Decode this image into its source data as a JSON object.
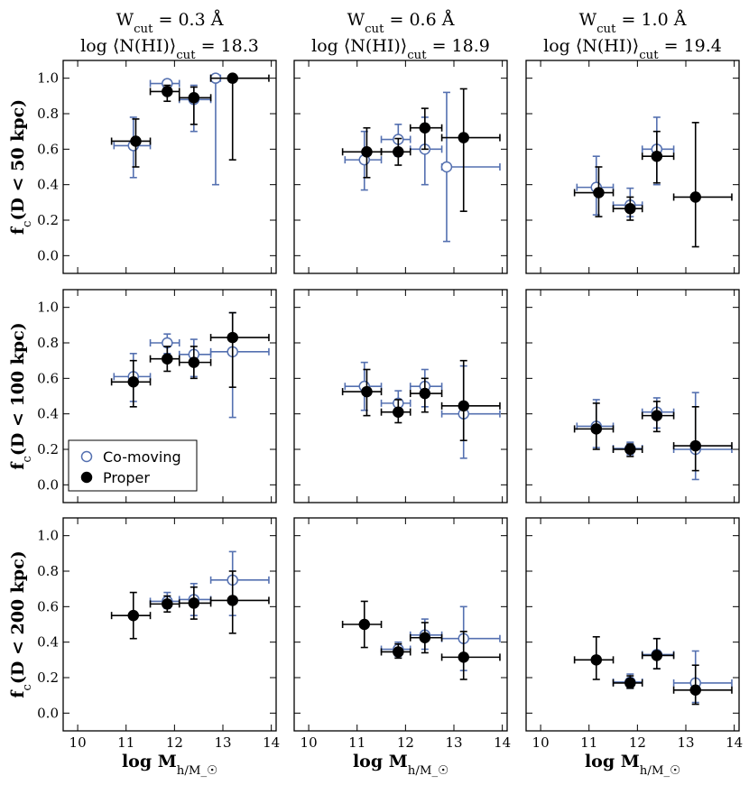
{
  "colors": {
    "comoving": "#5470b0",
    "proper": "#000000"
  },
  "column_titles": [
    {
      "line1": "W_cut = 0.3 Å",
      "line2": "log ⟨N(HI)⟩_cut = 18.3"
    },
    {
      "line1": "W_cut = 0.6 Å",
      "line2": "log ⟨N(HI)⟩_cut = 18.9"
    },
    {
      "line1": "W_cut = 1.0 Å",
      "line2": "log ⟨N(HI)⟩_cut = 19.4"
    }
  ],
  "row_labels": [
    "f_c(D < 50 kpc)",
    "f_c(D < 100 kpc)",
    "f_c(D < 200 kpc)"
  ],
  "xlabel": "log M_h/M_☉",
  "legend": {
    "comoving": "Co-moving",
    "proper": "Proper"
  },
  "chart_data": {
    "type": "scatter",
    "xlim": [
      9.7,
      14.1
    ],
    "ylim": [
      -0.1,
      1.1
    ],
    "xticks": [
      10,
      11,
      12,
      13,
      14
    ],
    "yticks": [
      0.0,
      0.2,
      0.4,
      0.6,
      0.8,
      1.0
    ],
    "panels": [
      [
        {
          "comoving": [
            {
              "x": 11.15,
              "y": 0.62,
              "xlo": 10.75,
              "xhi": 11.5,
              "ylo": 0.44,
              "yhi": 0.78
            },
            {
              "x": 11.85,
              "y": 0.97,
              "xlo": 11.5,
              "xhi": 12.1,
              "ylo": 0.93,
              "yhi": 0.99
            },
            {
              "x": 12.4,
              "y": 0.88,
              "xlo": 12.1,
              "xhi": 12.75,
              "ylo": 0.7,
              "yhi": 0.96
            },
            {
              "x": 12.85,
              "y": 1.0,
              "xlo": 12.75,
              "xhi": 12.95,
              "ylo": 0.4,
              "yhi": 1.0
            }
          ],
          "proper": [
            {
              "x": 11.2,
              "y": 0.645,
              "xlo": 10.7,
              "xhi": 11.5,
              "ylo": 0.5,
              "yhi": 0.77
            },
            {
              "x": 11.85,
              "y": 0.925,
              "xlo": 11.5,
              "xhi": 12.1,
              "ylo": 0.87,
              "yhi": 0.96
            },
            {
              "x": 12.4,
              "y": 0.89,
              "xlo": 12.1,
              "xhi": 12.75,
              "ylo": 0.74,
              "yhi": 0.95
            },
            {
              "x": 13.2,
              "y": 1.0,
              "xlo": 12.75,
              "xhi": 13.95,
              "ylo": 0.54,
              "yhi": 1.0
            }
          ]
        },
        {
          "comoving": [
            {
              "x": 11.15,
              "y": 0.54,
              "xlo": 10.75,
              "xhi": 11.5,
              "ylo": 0.37,
              "yhi": 0.7
            },
            {
              "x": 11.85,
              "y": 0.655,
              "xlo": 11.5,
              "xhi": 12.1,
              "ylo": 0.56,
              "yhi": 0.74
            },
            {
              "x": 12.4,
              "y": 0.6,
              "xlo": 12.1,
              "xhi": 12.75,
              "ylo": 0.4,
              "yhi": 0.78
            },
            {
              "x": 12.85,
              "y": 0.5,
              "xlo": 12.75,
              "xhi": 13.95,
              "ylo": 0.08,
              "yhi": 0.92
            }
          ],
          "proper": [
            {
              "x": 11.2,
              "y": 0.585,
              "xlo": 10.7,
              "xhi": 11.5,
              "ylo": 0.44,
              "yhi": 0.72
            },
            {
              "x": 11.85,
              "y": 0.585,
              "xlo": 11.5,
              "xhi": 12.1,
              "ylo": 0.51,
              "yhi": 0.66
            },
            {
              "x": 12.4,
              "y": 0.72,
              "xlo": 12.1,
              "xhi": 12.75,
              "ylo": 0.6,
              "yhi": 0.83
            },
            {
              "x": 13.2,
              "y": 0.665,
              "xlo": 12.75,
              "xhi": 13.95,
              "ylo": 0.25,
              "yhi": 0.94
            }
          ]
        },
        {
          "comoving": [
            {
              "x": 11.15,
              "y": 0.385,
              "xlo": 10.75,
              "xhi": 11.5,
              "ylo": 0.23,
              "yhi": 0.56
            },
            {
              "x": 11.85,
              "y": 0.285,
              "xlo": 11.5,
              "xhi": 12.1,
              "ylo": 0.22,
              "yhi": 0.38
            },
            {
              "x": 12.4,
              "y": 0.6,
              "xlo": 12.1,
              "xhi": 12.75,
              "ylo": 0.4,
              "yhi": 0.78
            }
          ],
          "proper": [
            {
              "x": 11.2,
              "y": 0.355,
              "xlo": 10.7,
              "xhi": 11.5,
              "ylo": 0.22,
              "yhi": 0.5
            },
            {
              "x": 11.85,
              "y": 0.265,
              "xlo": 11.5,
              "xhi": 12.1,
              "ylo": 0.2,
              "yhi": 0.33
            },
            {
              "x": 12.4,
              "y": 0.56,
              "xlo": 12.1,
              "xhi": 12.75,
              "ylo": 0.41,
              "yhi": 0.7
            },
            {
              "x": 13.2,
              "y": 0.33,
              "xlo": 12.75,
              "xhi": 13.95,
              "ylo": 0.05,
              "yhi": 0.75
            }
          ]
        }
      ],
      [
        {
          "comoving": [
            {
              "x": 11.15,
              "y": 0.61,
              "xlo": 10.75,
              "xhi": 11.5,
              "ylo": 0.47,
              "yhi": 0.74
            },
            {
              "x": 11.85,
              "y": 0.8,
              "xlo": 11.5,
              "xhi": 12.1,
              "ylo": 0.74,
              "yhi": 0.85
            },
            {
              "x": 12.4,
              "y": 0.735,
              "xlo": 12.1,
              "xhi": 12.75,
              "ylo": 0.61,
              "yhi": 0.82
            },
            {
              "x": 13.2,
              "y": 0.75,
              "xlo": 12.75,
              "xhi": 13.95,
              "ylo": 0.38,
              "yhi": 0.97
            }
          ],
          "proper": [
            {
              "x": 11.15,
              "y": 0.58,
              "xlo": 10.7,
              "xhi": 11.5,
              "ylo": 0.44,
              "yhi": 0.7
            },
            {
              "x": 11.85,
              "y": 0.71,
              "xlo": 11.5,
              "xhi": 12.1,
              "ylo": 0.64,
              "yhi": 0.78
            },
            {
              "x": 12.4,
              "y": 0.69,
              "xlo": 12.1,
              "xhi": 12.75,
              "ylo": 0.6,
              "yhi": 0.78
            },
            {
              "x": 13.2,
              "y": 0.83,
              "xlo": 12.75,
              "xhi": 13.95,
              "ylo": 0.55,
              "yhi": 0.97
            }
          ]
        },
        {
          "comoving": [
            {
              "x": 11.15,
              "y": 0.555,
              "xlo": 10.75,
              "xhi": 11.5,
              "ylo": 0.42,
              "yhi": 0.69
            },
            {
              "x": 11.85,
              "y": 0.46,
              "xlo": 11.5,
              "xhi": 12.1,
              "ylo": 0.39,
              "yhi": 0.53
            },
            {
              "x": 12.4,
              "y": 0.555,
              "xlo": 12.1,
              "xhi": 12.75,
              "ylo": 0.44,
              "yhi": 0.65
            },
            {
              "x": 13.2,
              "y": 0.4,
              "xlo": 12.75,
              "xhi": 13.95,
              "ylo": 0.15,
              "yhi": 0.67
            }
          ],
          "proper": [
            {
              "x": 11.2,
              "y": 0.525,
              "xlo": 10.7,
              "xhi": 11.5,
              "ylo": 0.39,
              "yhi": 0.65
            },
            {
              "x": 11.85,
              "y": 0.41,
              "xlo": 11.5,
              "xhi": 12.1,
              "ylo": 0.35,
              "yhi": 0.48
            },
            {
              "x": 12.4,
              "y": 0.515,
              "xlo": 12.1,
              "xhi": 12.75,
              "ylo": 0.41,
              "yhi": 0.6
            },
            {
              "x": 13.2,
              "y": 0.445,
              "xlo": 12.75,
              "xhi": 13.95,
              "ylo": 0.25,
              "yhi": 0.7
            }
          ]
        },
        {
          "comoving": [
            {
              "x": 11.15,
              "y": 0.33,
              "xlo": 10.75,
              "xhi": 11.5,
              "ylo": 0.21,
              "yhi": 0.48
            },
            {
              "x": 11.85,
              "y": 0.205,
              "xlo": 11.5,
              "xhi": 12.1,
              "ylo": 0.17,
              "yhi": 0.24
            },
            {
              "x": 12.4,
              "y": 0.41,
              "xlo": 12.1,
              "xhi": 12.75,
              "ylo": 0.32,
              "yhi": 0.49
            },
            {
              "x": 13.2,
              "y": 0.2,
              "xlo": 12.75,
              "xhi": 13.95,
              "ylo": 0.03,
              "yhi": 0.52
            }
          ],
          "proper": [
            {
              "x": 11.15,
              "y": 0.315,
              "xlo": 10.7,
              "xhi": 11.5,
              "ylo": 0.2,
              "yhi": 0.46
            },
            {
              "x": 11.85,
              "y": 0.2,
              "xlo": 11.5,
              "xhi": 12.1,
              "ylo": 0.16,
              "yhi": 0.23
            },
            {
              "x": 12.4,
              "y": 0.39,
              "xlo": 12.1,
              "xhi": 12.75,
              "ylo": 0.3,
              "yhi": 0.47
            },
            {
              "x": 13.2,
              "y": 0.22,
              "xlo": 12.75,
              "xhi": 13.95,
              "ylo": 0.08,
              "yhi": 0.44
            }
          ]
        }
      ],
      [
        {
          "comoving": [
            {
              "x": 11.85,
              "y": 0.63,
              "xlo": 11.5,
              "xhi": 12.1,
              "ylo": 0.59,
              "yhi": 0.68
            },
            {
              "x": 12.4,
              "y": 0.64,
              "xlo": 12.1,
              "xhi": 12.75,
              "ylo": 0.55,
              "yhi": 0.73
            },
            {
              "x": 13.2,
              "y": 0.75,
              "xlo": 12.75,
              "xhi": 13.95,
              "ylo": 0.55,
              "yhi": 0.91
            }
          ],
          "proper": [
            {
              "x": 11.15,
              "y": 0.55,
              "xlo": 10.7,
              "xhi": 11.5,
              "ylo": 0.42,
              "yhi": 0.68
            },
            {
              "x": 11.85,
              "y": 0.615,
              "xlo": 11.5,
              "xhi": 12.1,
              "ylo": 0.57,
              "yhi": 0.66
            },
            {
              "x": 12.4,
              "y": 0.62,
              "xlo": 12.1,
              "xhi": 12.75,
              "ylo": 0.53,
              "yhi": 0.71
            },
            {
              "x": 13.2,
              "y": 0.635,
              "xlo": 12.75,
              "xhi": 13.95,
              "ylo": 0.45,
              "yhi": 0.8
            }
          ]
        },
        {
          "comoving": [
            {
              "x": 11.85,
              "y": 0.36,
              "xlo": 11.5,
              "xhi": 12.1,
              "ylo": 0.32,
              "yhi": 0.4
            },
            {
              "x": 12.4,
              "y": 0.44,
              "xlo": 12.1,
              "xhi": 12.75,
              "ylo": 0.36,
              "yhi": 0.53
            },
            {
              "x": 13.2,
              "y": 0.42,
              "xlo": 12.75,
              "xhi": 13.95,
              "ylo": 0.24,
              "yhi": 0.6
            }
          ],
          "proper": [
            {
              "x": 11.15,
              "y": 0.5,
              "xlo": 10.7,
              "xhi": 11.5,
              "ylo": 0.37,
              "yhi": 0.63
            },
            {
              "x": 11.85,
              "y": 0.345,
              "xlo": 11.5,
              "xhi": 12.1,
              "ylo": 0.31,
              "yhi": 0.39
            },
            {
              "x": 12.4,
              "y": 0.425,
              "xlo": 12.1,
              "xhi": 12.75,
              "ylo": 0.34,
              "yhi": 0.51
            },
            {
              "x": 13.2,
              "y": 0.315,
              "xlo": 12.75,
              "xhi": 13.95,
              "ylo": 0.19,
              "yhi": 0.46
            }
          ]
        },
        {
          "comoving": [
            {
              "x": 11.85,
              "y": 0.175,
              "xlo": 11.5,
              "xhi": 12.1,
              "ylo": 0.14,
              "yhi": 0.22
            },
            {
              "x": 12.4,
              "y": 0.33,
              "xlo": 12.1,
              "xhi": 12.75,
              "ylo": 0.25,
              "yhi": 0.42
            },
            {
              "x": 13.2,
              "y": 0.17,
              "xlo": 12.75,
              "xhi": 13.95,
              "ylo": 0.06,
              "yhi": 0.35
            }
          ],
          "proper": [
            {
              "x": 11.15,
              "y": 0.3,
              "xlo": 10.7,
              "xhi": 11.5,
              "ylo": 0.19,
              "yhi": 0.43
            },
            {
              "x": 11.85,
              "y": 0.17,
              "xlo": 11.5,
              "xhi": 12.1,
              "ylo": 0.14,
              "yhi": 0.21
            },
            {
              "x": 12.4,
              "y": 0.325,
              "xlo": 12.1,
              "xhi": 12.75,
              "ylo": 0.25,
              "yhi": 0.42
            },
            {
              "x": 13.2,
              "y": 0.13,
              "xlo": 12.75,
              "xhi": 13.95,
              "ylo": 0.05,
              "yhi": 0.27
            }
          ]
        }
      ]
    ]
  }
}
